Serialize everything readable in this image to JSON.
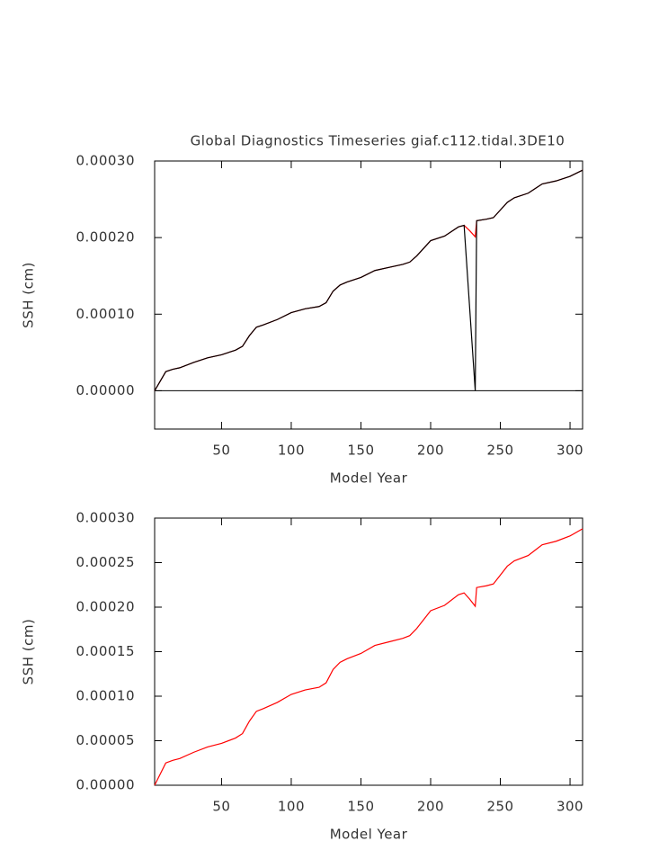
{
  "chart_data": [
    {
      "type": "line",
      "title": "Global Diagnostics Timeseries giaf.c112.tidal.3DE10",
      "x_label": "Model Year",
      "y_label": "SSH (cm)",
      "x": [
        2,
        10,
        15,
        20,
        30,
        40,
        50,
        60,
        65,
        70,
        75,
        80,
        90,
        100,
        110,
        120,
        125,
        130,
        135,
        140,
        150,
        160,
        170,
        180,
        185,
        190,
        195,
        200,
        210,
        220,
        224,
        228,
        232,
        233,
        240,
        245,
        250,
        255,
        260,
        270,
        275,
        280,
        290,
        300,
        309
      ],
      "series": [
        {
          "color": "#ff0000",
          "values": [
            0,
            2.5e-05,
            2.8e-05,
            3e-05,
            3.7e-05,
            4.3e-05,
            4.7e-05,
            5.3e-05,
            5.8e-05,
            7.2e-05,
            8.3e-05,
            8.6e-05,
            9.3e-05,
            0.000102,
            0.000107,
            0.00011,
            0.000115,
            0.00013,
            0.000138,
            0.000142,
            0.000148,
            0.000157,
            0.000161,
            0.000165,
            0.000168,
            0.000176,
            0.000186,
            0.000196,
            0.000202,
            0.000214,
            0.000216,
            0.000209,
            0.000201,
            0.000222,
            0.000224,
            0.000226,
            0.000236,
            0.000246,
            0.000252,
            0.000258,
            0.000264,
            0.00027,
            0.000274,
            0.00028,
            0.000288
          ]
        },
        {
          "color": "#000000",
          "values": [
            0,
            2.5e-05,
            2.8e-05,
            3e-05,
            3.7e-05,
            4.3e-05,
            4.7e-05,
            5.3e-05,
            5.8e-05,
            7.2e-05,
            8.3e-05,
            8.6e-05,
            9.3e-05,
            0.000102,
            0.000107,
            0.00011,
            0.000115,
            0.00013,
            0.000138,
            0.000142,
            0.000148,
            0.000157,
            0.000161,
            0.000165,
            0.000168,
            0.000176,
            0.000186,
            0.000196,
            0.000202,
            0.000214,
            0.000216,
            0.000108,
            0,
            0.000222,
            0.000224,
            0.000226,
            0.000236,
            0.000246,
            0.000252,
            0.000258,
            0.000264,
            0.00027,
            0.000274,
            0.00028,
            0.000288
          ]
        }
      ],
      "reference_line": 0,
      "xlim": [
        2,
        309
      ],
      "xticks": [
        50,
        100,
        150,
        200,
        250,
        300
      ],
      "ylim": [
        -5e-05,
        0.0003
      ],
      "yticks": [
        {
          "value": 0,
          "label": "0.00000"
        },
        {
          "value": 0.0001,
          "label": "0.00010"
        },
        {
          "value": 0.0002,
          "label": "0.00020"
        },
        {
          "value": 0.0003,
          "label": "0.00030"
        }
      ]
    },
    {
      "type": "line",
      "x_label": "Model Year",
      "y_label": "SSH (cm)",
      "x": [
        2,
        10,
        15,
        20,
        30,
        40,
        50,
        60,
        65,
        70,
        75,
        80,
        90,
        100,
        110,
        120,
        125,
        130,
        135,
        140,
        150,
        160,
        170,
        180,
        185,
        190,
        195,
        200,
        210,
        220,
        224,
        228,
        232,
        233,
        240,
        245,
        250,
        255,
        260,
        270,
        275,
        280,
        290,
        300,
        309
      ],
      "series": [
        {
          "color": "#ff0000",
          "values": [
            0,
            2.5e-05,
            2.8e-05,
            3e-05,
            3.7e-05,
            4.3e-05,
            4.7e-05,
            5.3e-05,
            5.8e-05,
            7.2e-05,
            8.3e-05,
            8.6e-05,
            9.3e-05,
            0.000102,
            0.000107,
            0.00011,
            0.000115,
            0.00013,
            0.000138,
            0.000142,
            0.000148,
            0.000157,
            0.000161,
            0.000165,
            0.000168,
            0.000176,
            0.000186,
            0.000196,
            0.000202,
            0.000214,
            0.000216,
            0.000209,
            0.000201,
            0.000222,
            0.000224,
            0.000226,
            0.000236,
            0.000246,
            0.000252,
            0.000258,
            0.000264,
            0.00027,
            0.000274,
            0.00028,
            0.000288
          ]
        }
      ],
      "xlim": [
        2,
        309
      ],
      "xticks": [
        50,
        100,
        150,
        200,
        250,
        300
      ],
      "ylim": [
        0,
        0.0003
      ],
      "yticks": [
        {
          "value": 0,
          "label": "0.00000"
        },
        {
          "value": 5e-05,
          "label": "0.00005"
        },
        {
          "value": 0.0001,
          "label": "0.00010"
        },
        {
          "value": 0.00015,
          "label": "0.00015"
        },
        {
          "value": 0.0002,
          "label": "0.00020"
        },
        {
          "value": 0.00025,
          "label": "0.00025"
        },
        {
          "value": 0.0003,
          "label": "0.00030"
        }
      ]
    }
  ]
}
